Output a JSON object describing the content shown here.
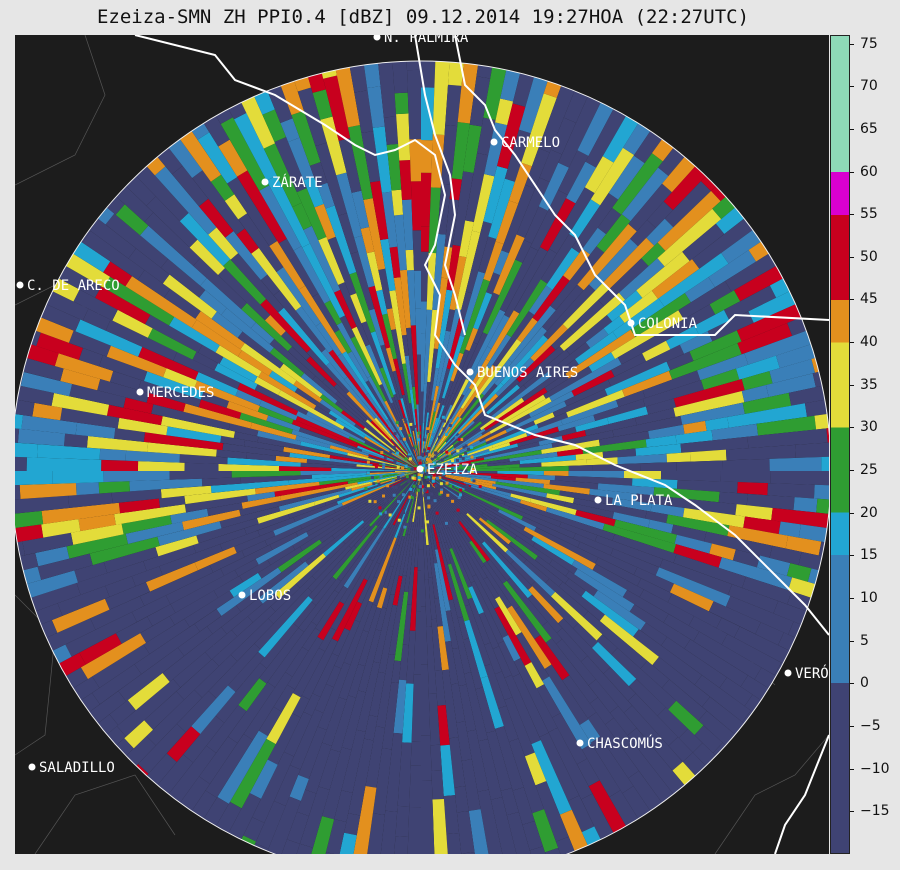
{
  "title": "Ezeiza-SMN ZH PPI0.4 [dBZ] 09.12.2014 19:27HOA (22:27UTC)",
  "cities": [
    {
      "name": "CARMELO"
    },
    {
      "name": "ZÁRATE"
    },
    {
      "name": "C. DE ARECO"
    },
    {
      "name": "COLONIA"
    },
    {
      "name": "BUENOS AIRES"
    },
    {
      "name": "MERCEDES"
    },
    {
      "name": "EZEIZA"
    },
    {
      "name": "LA PLATA"
    },
    {
      "name": "LOBOS"
    },
    {
      "name": "VERÓ"
    },
    {
      "name": "CHASCOMÚS"
    },
    {
      "name": "SALADILLO"
    },
    {
      "name": "N. PALMIRA"
    }
  ],
  "colorbar": {
    "unit": "dBZ",
    "range": [
      -20,
      76
    ],
    "ticks": [
      "75",
      "70",
      "65",
      "60",
      "55",
      "50",
      "45",
      "40",
      "35",
      "30",
      "25",
      "20",
      "15",
      "10",
      "5",
      "0",
      "−5",
      "−10",
      "−15"
    ],
    "tick_values": [
      75,
      70,
      65,
      60,
      55,
      50,
      45,
      40,
      35,
      30,
      25,
      20,
      15,
      10,
      5,
      0,
      -5,
      -10,
      -15
    ],
    "colors": {
      "below_0": "#3f4373",
      "0_to_15": "#3a7fb8",
      "15_to_20": "#22a6d2",
      "20_to_30": "#2f9d32",
      "30_to_40": "#e3dc3a",
      "40_to_45": "#e3901e",
      "45_to_55": "#c8001e",
      "55_to_60": "#d900d0",
      "60_to_76": "#8ed9b8"
    }
  }
}
